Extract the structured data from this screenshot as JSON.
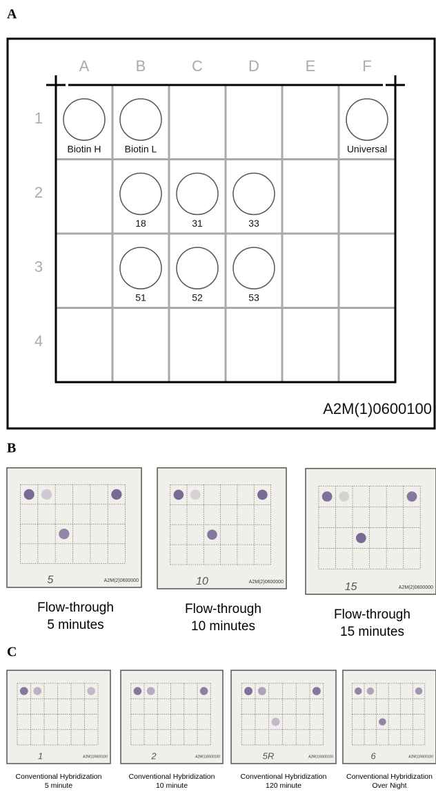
{
  "panel_a": {
    "label": "A",
    "columns": [
      "A",
      "B",
      "C",
      "D",
      "E",
      "F"
    ],
    "rows": [
      "1",
      "2",
      "3",
      "4"
    ],
    "grid": [
      [
        "Biotin H",
        "Biotin L",
        null,
        null,
        null,
        "Universal"
      ],
      [
        null,
        "18",
        "31",
        "33",
        null,
        null
      ],
      [
        null,
        "51",
        "52",
        "53",
        null,
        null
      ],
      [
        null,
        null,
        null,
        null,
        null,
        null
      ]
    ],
    "code": "A2M(1)0600100"
  },
  "panel_b": {
    "label": "B",
    "photos": [
      {
        "mark": "5",
        "code": "A2M(2)0600000",
        "caption": [
          "Flow-through",
          "5 minutes"
        ]
      },
      {
        "mark": "10",
        "code": "A2M(2)0600000",
        "caption": [
          "Flow-through",
          "10 minutes"
        ]
      },
      {
        "mark": "15",
        "code": "A2M(2)0600000",
        "caption": [
          "Flow-through",
          "15 minutes"
        ]
      }
    ]
  },
  "panel_c": {
    "label": "C",
    "photos": [
      {
        "mark": "1",
        "code": "A2M(1)0600100",
        "caption": [
          "Conventional Hybridization",
          "5 minute"
        ]
      },
      {
        "mark": "2",
        "code": "A2M(1)0600100",
        "caption": [
          "Conventional Hybridization",
          "10 minute"
        ]
      },
      {
        "mark": "5R",
        "code": "A2M(1)0600100",
        "caption": [
          "Conventional Hybridization",
          "120 minute"
        ]
      },
      {
        "mark": "6",
        "code": "A2M(1)0600100",
        "caption": [
          "Conventional Hybridization",
          "Over Night"
        ]
      }
    ]
  }
}
